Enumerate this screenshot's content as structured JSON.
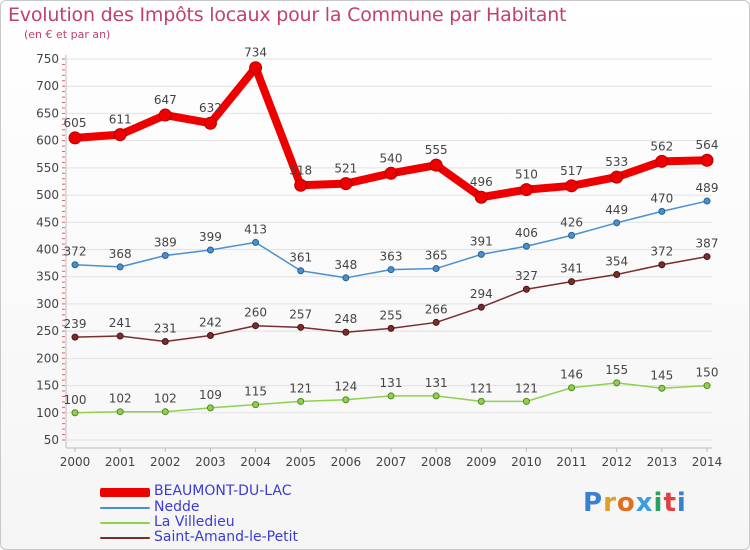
{
  "header": {
    "title": "Evolution des Impôts locaux pour la Commune par Habitant",
    "subtitle": "(en € et par an)"
  },
  "brand": {
    "text": "Proxiti"
  },
  "colors": {
    "title": "#c2406f",
    "axis_text": "#444444",
    "grid": "#e2e2e2",
    "legend_text": "#3b3bd6"
  },
  "chart_data": {
    "type": "line",
    "title": "Evolution des Impôts locaux pour la Commune par Habitant",
    "subtitle": "(en € et par an)",
    "x": [
      2000,
      2001,
      2002,
      2003,
      2004,
      2005,
      2006,
      2007,
      2008,
      2009,
      2010,
      2011,
      2012,
      2013,
      2014
    ],
    "ylim": [
      50,
      750
    ],
    "yticks": [
      50,
      100,
      150,
      200,
      250,
      300,
      350,
      400,
      450,
      500,
      550,
      600,
      650,
      700,
      750
    ],
    "grid": true,
    "legend_position": "bottom-left",
    "series": [
      {
        "name": "BEAUMONT-DU-LAC",
        "color": "#ee0000",
        "values": [
          605,
          611,
          647,
          632,
          734,
          518,
          521,
          540,
          555,
          496,
          510,
          517,
          533,
          562,
          564
        ],
        "labels": [
          "605",
          "611",
          "647",
          "632",
          "734",
          "518",
          "521",
          "540",
          "555",
          "496",
          "510",
          "517",
          "533",
          "562",
          "564"
        ]
      },
      {
        "name": "Nedde",
        "color": "#4a90d0",
        "values": [
          372,
          368,
          389,
          399,
          413,
          361,
          348,
          363,
          365,
          391,
          406,
          426,
          449,
          470,
          489
        ],
        "labels": [
          "372",
          "368",
          "389",
          "399",
          "413",
          "361",
          "348",
          "363",
          "365",
          "391",
          "406",
          "426",
          "449",
          "470",
          "489"
        ]
      },
      {
        "name": "La Villedieu",
        "color": "#8fd14f",
        "values": [
          100,
          102,
          102,
          109,
          115,
          121,
          124,
          131,
          131,
          121,
          121,
          146,
          155,
          145,
          150
        ],
        "labels": [
          "100",
          "102",
          "102",
          "109",
          "115",
          "121",
          "124",
          "131",
          "131",
          "121",
          "121",
          "146",
          "155",
          "145",
          "150"
        ]
      },
      {
        "name": "Saint-Amand-le-Petit",
        "color": "#7a2d2d",
        "values": [
          239,
          241,
          231,
          242,
          260,
          257,
          248,
          255,
          266,
          294,
          327,
          341,
          354,
          372,
          387
        ],
        "labels": [
          "239",
          "241",
          "231",
          "242",
          "260",
          "257",
          "248",
          "255",
          "266",
          "294",
          "327",
          "341",
          "354",
          "372",
          "387"
        ]
      }
    ]
  }
}
